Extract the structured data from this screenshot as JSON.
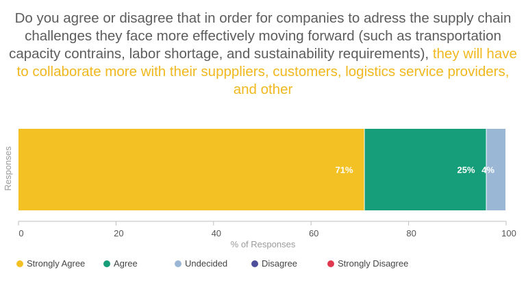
{
  "title": {
    "part1": "Do you agree or disagree that in order for companies to adress the supply chain challenges they face more effectively moving forward (such as transportation capacity contrains, labor shortage, and sustainability requirements), ",
    "part2": "they will have to collaborate more with their supppliers, customers, logistics service providers, and other"
  },
  "chart_data": {
    "type": "bar",
    "orientation": "horizontal-stacked",
    "categories": [
      "Responses"
    ],
    "series": [
      {
        "name": "Strongly Agree",
        "values": [
          71
        ],
        "label": "71%",
        "color": "#f4c124"
      },
      {
        "name": "Agree",
        "values": [
          25
        ],
        "label": "25%",
        "color": "#169d79"
      },
      {
        "name": "Undecided",
        "values": [
          4
        ],
        "label": "4%",
        "color": "#9ab7d6"
      },
      {
        "name": "Disagree",
        "values": [
          0
        ],
        "label": "",
        "color": "#4e4f9b"
      },
      {
        "name": "Strongly Disagree",
        "values": [
          0
        ],
        "label": "",
        "color": "#e0394f"
      }
    ],
    "xlabel": "% of Responses",
    "ylabel": "Responses",
    "xlim": [
      0,
      100
    ],
    "xticks": [
      "0",
      "20",
      "40",
      "60",
      "80",
      "100"
    ],
    "grid": false,
    "legend_position": "bottom"
  }
}
